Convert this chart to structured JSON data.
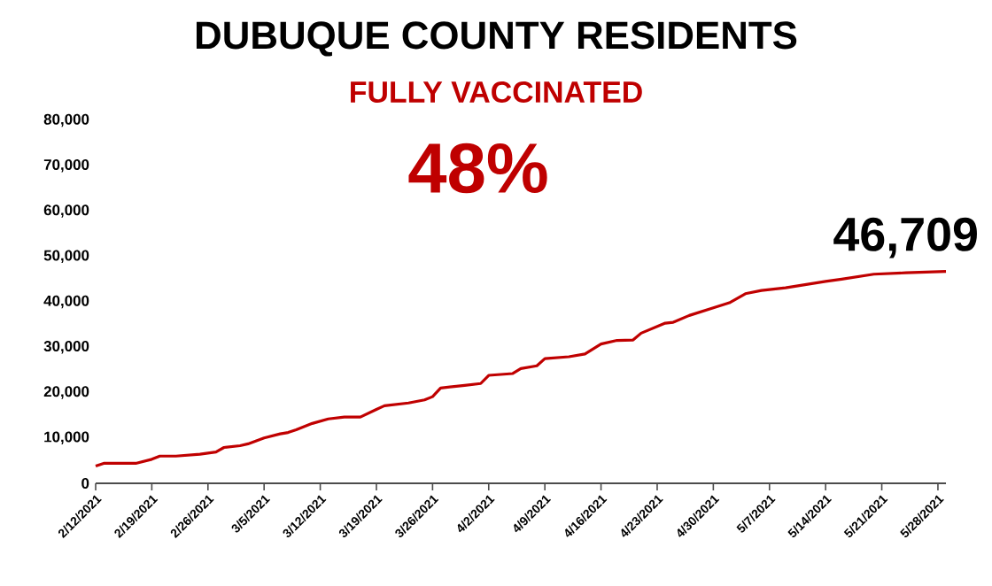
{
  "chart_data": {
    "type": "line",
    "title": "DUBUQUE COUNTY RESIDENTS",
    "subtitle": "FULLY VACCINATED",
    "annotations": [
      "48%",
      {
        "text": "46,709",
        "x": "2021-05-29",
        "y": 46709
      }
    ],
    "x": [
      "2021-02-12",
      "2021-02-13",
      "2021-02-17",
      "2021-02-19",
      "2021-02-20",
      "2021-02-22",
      "2021-02-25",
      "2021-02-27",
      "2021-02-28",
      "2021-03-02",
      "2021-03-03",
      "2021-03-05",
      "2021-03-07",
      "2021-03-08",
      "2021-03-09",
      "2021-03-11",
      "2021-03-13",
      "2021-03-15",
      "2021-03-17",
      "2021-03-19",
      "2021-03-20",
      "2021-03-23",
      "2021-03-25",
      "2021-03-26",
      "2021-03-27",
      "2021-03-30",
      "2021-04-01",
      "2021-04-02",
      "2021-04-05",
      "2021-04-06",
      "2021-04-08",
      "2021-04-09",
      "2021-04-12",
      "2021-04-14",
      "2021-04-16",
      "2021-04-18",
      "2021-04-20",
      "2021-04-21",
      "2021-04-24",
      "2021-04-25",
      "2021-04-27",
      "2021-04-30",
      "2021-05-02",
      "2021-05-04",
      "2021-05-06",
      "2021-05-09",
      "2021-05-14",
      "2021-05-16",
      "2021-05-20",
      "2021-05-24",
      "2021-05-29"
    ],
    "series": [
      {
        "color": "#c00000",
        "values": [
          3800,
          4400,
          4400,
          5300,
          6000,
          6000,
          6400,
          6900,
          7900,
          8300,
          8700,
          10000,
          10900,
          11200,
          11800,
          13200,
          14200,
          14600,
          14600,
          16300,
          17100,
          17700,
          18400,
          19100,
          21000,
          21600,
          22000,
          23800,
          24200,
          25300,
          25900,
          27500,
          27900,
          28500,
          30700,
          31500,
          31600,
          33100,
          35300,
          35500,
          37000,
          38700,
          39800,
          41800,
          42500,
          43100,
          44500,
          45000,
          46100,
          46400,
          46709
        ]
      }
    ],
    "xlim": [
      "2021-02-12",
      "2021-05-29"
    ],
    "xticks": [
      {
        "value": "2021-02-12",
        "label": "2/12/2021"
      },
      {
        "value": "2021-02-19",
        "label": "2/19/2021"
      },
      {
        "value": "2021-02-26",
        "label": "2/26/2021"
      },
      {
        "value": "2021-03-05",
        "label": "3/5/2021"
      },
      {
        "value": "2021-03-12",
        "label": "3/12/2021"
      },
      {
        "value": "2021-03-19",
        "label": "3/19/2021"
      },
      {
        "value": "2021-03-26",
        "label": "3/26/2021"
      },
      {
        "value": "2021-04-02",
        "label": "4/2/2021"
      },
      {
        "value": "2021-04-09",
        "label": "4/9/2021"
      },
      {
        "value": "2021-04-16",
        "label": "4/16/2021"
      },
      {
        "value": "2021-04-23",
        "label": "4/23/2021"
      },
      {
        "value": "2021-04-30",
        "label": "4/30/2021"
      },
      {
        "value": "2021-05-07",
        "label": "5/7/2021"
      },
      {
        "value": "2021-05-14",
        "label": "5/14/2021"
      },
      {
        "value": "2021-05-21",
        "label": "5/21/2021"
      },
      {
        "value": "2021-05-28",
        "label": "5/28/2021"
      }
    ],
    "ylim": [
      0,
      80000
    ],
    "yticks": [
      0,
      {
        "value": 10000,
        "label": "10,000"
      },
      {
        "value": 20000,
        "label": "20,000"
      },
      {
        "value": 30000,
        "label": "30,000"
      },
      {
        "value": 40000,
        "label": "40,000"
      },
      {
        "value": 50000,
        "label": "50,000"
      },
      {
        "value": 60000,
        "label": "60,000"
      },
      {
        "value": 70000,
        "label": "70,000"
      },
      {
        "value": 80000,
        "label": "80,000"
      }
    ],
    "grid": false,
    "marker": "none",
    "line_style": "solid"
  }
}
